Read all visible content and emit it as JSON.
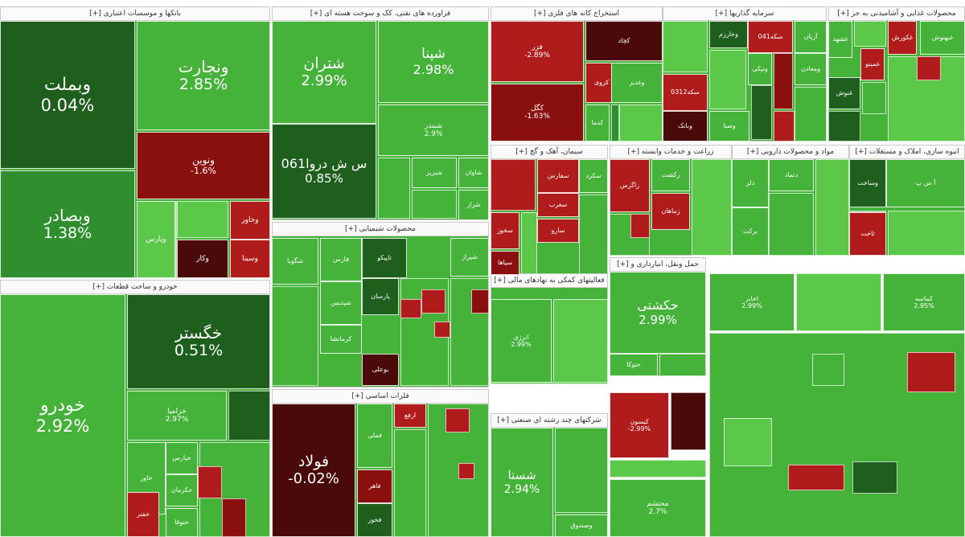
{
  "chart_data": {
    "type": "treemap",
    "title": "",
    "colors": {
      "strong_up": "#1e5f1e",
      "up": "#2f8f2f",
      "mild_up": "#45b23a",
      "bright_up": "#5cc84a",
      "mild_down": "#b01c1c",
      "down": "#8a1010",
      "strong_down": "#4a0a0a"
    },
    "sectors": [
      {
        "name": "بانکها و موسسات اعتباری [+]",
        "tiles": [
          {
            "symbol": "وبملت",
            "change": "0.04%",
            "color": "strong_up"
          },
          {
            "symbol": "ونجارت",
            "change": "2.85%",
            "color": "mild_up"
          },
          {
            "symbol": "وبصادر",
            "change": "1.38%",
            "color": "up"
          },
          {
            "symbol": "ونوین",
            "change": "-1.6%",
            "color": "down"
          },
          {
            "symbol": "وپارس",
            "change": "",
            "color": "bright_up"
          },
          {
            "symbol": "وخاور",
            "change": "",
            "color": "mild_down"
          },
          {
            "symbol": "وسینا",
            "change": "",
            "color": "mild_down"
          },
          {
            "symbol": "وکار",
            "change": "",
            "color": "strong_down"
          }
        ]
      },
      {
        "name": "فراورده های نفتی، کک و سوخت هسته ای [+]",
        "tiles": [
          {
            "symbol": "شتران",
            "change": "2.99%",
            "color": "mild_up"
          },
          {
            "symbol": "شپنا",
            "change": "2.98%",
            "color": "mild_up"
          },
          {
            "symbol": "س ش دروا061",
            "change": "0.85%",
            "color": "strong_up"
          },
          {
            "symbol": "شبندر",
            "change": "2.9%",
            "color": "mild_up"
          },
          {
            "symbol": "شاوان",
            "change": "",
            "color": "mild_up"
          },
          {
            "symbol": "شبریز",
            "change": "",
            "color": "mild_up"
          },
          {
            "symbol": "شراز",
            "change": "",
            "color": "mild_up"
          }
        ]
      },
      {
        "name": "استخراج کانه های فلزی [+]",
        "tiles": [
          {
            "symbol": "کچاد",
            "change": "",
            "color": "strong_down"
          },
          {
            "symbol": "فزر",
            "change": "-2.89%",
            "color": "mild_down"
          },
          {
            "symbol": "کگل",
            "change": "-1.63%",
            "color": "down"
          },
          {
            "symbol": "کروی",
            "change": "",
            "color": "mild_down"
          },
          {
            "symbol": "کدما",
            "change": "",
            "color": "mild_up"
          },
          {
            "symbol": "وغدیر",
            "change": "",
            "color": "mild_up"
          }
        ]
      },
      {
        "name": "سرمایه گذاریها [+]",
        "tiles": [
          {
            "symbol": "وخارزم",
            "change": "",
            "color": "strong_up"
          },
          {
            "symbol": "سکه041",
            "change": "",
            "color": "mild_down"
          },
          {
            "symbol": "آریان",
            "change": "",
            "color": "mild_up"
          },
          {
            "symbol": "سکه0312",
            "change": "",
            "color": "mild_down"
          },
          {
            "symbol": "وبانک",
            "change": "",
            "color": "strong_down"
          },
          {
            "symbol": "ونیکی",
            "change": "",
            "color": "mild_up"
          },
          {
            "symbol": "وصنا",
            "change": "",
            "color": "mild_up"
          },
          {
            "symbol": "ومعادن",
            "change": "",
            "color": "mild_up"
          }
        ]
      },
      {
        "name": "محصولات غذایی و آشامیدنی به جز [+]",
        "tiles": [
          {
            "symbol": "غکورش",
            "change": "",
            "color": "mild_down"
          },
          {
            "symbol": "غبهنوش",
            "change": "",
            "color": "mild_up"
          },
          {
            "symbol": "غشهد",
            "change": "",
            "color": "mild_up"
          },
          {
            "symbol": "غمینو",
            "change": "",
            "color": "mild_down"
          },
          {
            "symbol": "غنوش",
            "change": "",
            "color": "strong_up"
          }
        ]
      },
      {
        "name": "خودرو و ساخت قطعات [+]",
        "tiles": [
          {
            "symbol": "خودرو",
            "change": "2.92%",
            "color": "mild_up"
          },
          {
            "symbol": "خگستر",
            "change": "0.51%",
            "color": "strong_up"
          },
          {
            "symbol": "خزامیا",
            "change": "2.97%",
            "color": "mild_up"
          },
          {
            "symbol": "خاور",
            "change": "",
            "color": "mild_up"
          },
          {
            "symbol": "خپارس",
            "change": "",
            "color": "mild_up"
          },
          {
            "symbol": "خکرمان",
            "change": "",
            "color": "mild_up"
          },
          {
            "symbol": "ختوقا",
            "change": "",
            "color": "mild_up"
          },
          {
            "symbol": "خفنر",
            "change": "",
            "color": "mild_down"
          }
        ]
      },
      {
        "name": "محصولات شیمیایی [+]",
        "tiles": [
          {
            "symbol": "فارس",
            "change": "",
            "color": "mild_up"
          },
          {
            "symbol": "شپدیس",
            "change": "",
            "color": "mild_up"
          },
          {
            "symbol": "پارسان",
            "change": "",
            "color": "strong_up"
          },
          {
            "symbol": "شگویا",
            "change": "",
            "color": "mild_up"
          },
          {
            "symbol": "کرمانشا",
            "change": "",
            "color": "mild_up"
          },
          {
            "symbol": "شیراز",
            "change": "",
            "color": "mild_up"
          },
          {
            "symbol": "تاپیکو",
            "change": "",
            "color": "strong_up"
          },
          {
            "symbol": "بوعلی",
            "change": "",
            "color": "strong_down"
          }
        ]
      },
      {
        "name": "سیمان، آهک و گچ [+]",
        "tiles": [
          {
            "symbol": "سفارس",
            "change": "",
            "color": "mild_down"
          },
          {
            "symbol": "سخوز",
            "change": "",
            "color": "mild_down"
          },
          {
            "symbol": "سکرد",
            "change": "",
            "color": "mild_up"
          },
          {
            "symbol": "سپاها",
            "change": "",
            "color": "down"
          },
          {
            "symbol": "سغرب",
            "change": "",
            "color": "mild_down"
          },
          {
            "symbol": "سارو",
            "change": "",
            "color": "mild_down"
          }
        ]
      },
      {
        "name": "زراعت و خدمات وابسته [+]",
        "tiles": [
          {
            "symbol": "زاگرس",
            "change": "",
            "color": "mild_down"
          },
          {
            "symbol": "زکشت",
            "change": "",
            "color": "mild_up"
          },
          {
            "symbol": "زماهان",
            "change": "",
            "color": "mild_down"
          }
        ]
      },
      {
        "name": "مواد و محصولات دارویی [+]",
        "tiles": [
          {
            "symbol": "دلر",
            "change": "",
            "color": "mild_up"
          },
          {
            "symbol": "دتماد",
            "change": "",
            "color": "mild_up"
          },
          {
            "symbol": "برکت",
            "change": "",
            "color": "mild_up"
          }
        ]
      },
      {
        "name": "انبوه سازی، املاک و مستغلات [+]",
        "tiles": [
          {
            "symbol": "وساخت",
            "change": "",
            "color": "strong_up"
          },
          {
            "symbol": "آ س پ",
            "change": "",
            "color": "mild_up"
          },
          {
            "symbol": "ثاخت",
            "change": "",
            "color": "mild_down"
          }
        ]
      },
      {
        "name": "حمل ونقل، انبارداری و [+]",
        "tiles": [
          {
            "symbol": "حکشتی",
            "change": "2.99%",
            "color": "mild_up"
          },
          {
            "symbol": "حتوکا",
            "change": "",
            "color": "mild_up"
          }
        ]
      },
      {
        "name": "فلزات اساسی [+]",
        "tiles": [
          {
            "symbol": "فولاد",
            "change": "-0.02%",
            "color": "strong_down"
          },
          {
            "symbol": "فملی",
            "change": "",
            "color": "mild_up"
          },
          {
            "symbol": "فخوز",
            "change": "",
            "color": "strong_up"
          },
          {
            "symbol": "فاهر",
            "change": "",
            "color": "down"
          },
          {
            "symbol": "ارفع",
            "change": "",
            "color": "mild_down"
          }
        ]
      },
      {
        "name": "شرکتهای چند رشته ای صنعتی [+]",
        "tiles": [
          {
            "symbol": "شستا",
            "change": "2.94%",
            "color": "mild_up"
          },
          {
            "symbol": "وصندوق",
            "change": "",
            "color": "mild_up"
          }
        ]
      },
      {
        "name": "فعالیتهای کمکی به نهادهای مالی [+]",
        "tiles": [
          {
            "symbol": "انرژی",
            "change": "2.99%",
            "color": "mild_up"
          },
          {
            "symbol": "کیسون",
            "change": "-2.99%",
            "color": "mild_down"
          },
          {
            "symbol": "محتشم",
            "change": "2.7%",
            "color": "mild_up"
          },
          {
            "symbol": "اخابر",
            "change": "2.99%",
            "color": "mild_up"
          },
          {
            "symbol": "کماسه",
            "change": "2.95%",
            "color": "mild_up"
          }
        ]
      }
    ]
  }
}
